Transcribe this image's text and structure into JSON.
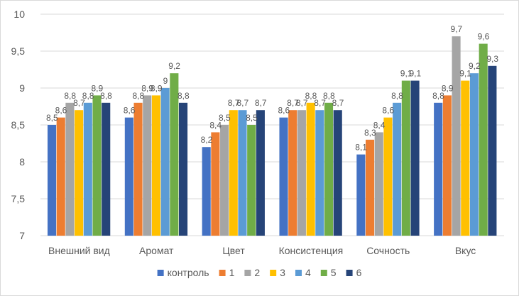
{
  "chart_data": {
    "type": "bar",
    "title": "",
    "xlabel": "",
    "ylabel": "",
    "ylim": [
      7,
      10
    ],
    "yticks": [
      "7",
      "7,5",
      "8",
      "8,5",
      "9",
      "9,5",
      "10"
    ],
    "ytick_values": [
      7,
      7.5,
      8,
      8.5,
      9,
      9.5,
      10
    ],
    "grid": true,
    "legend_position": "bottom",
    "categories": [
      "Внешний вид",
      "Аромат",
      "Цвет",
      "Консистенция",
      "Сочность",
      "Вкус"
    ],
    "series": [
      {
        "name": "контроль",
        "color": "#4472c4",
        "values": [
          8.5,
          8.6,
          8.2,
          8.6,
          8.1,
          8.8
        ],
        "labels": [
          "8,5",
          "8,6",
          "8,2",
          "8,6",
          "8,1",
          "8,8"
        ]
      },
      {
        "name": "1",
        "color": "#ed7d31",
        "values": [
          8.6,
          8.8,
          8.4,
          8.7,
          8.3,
          8.9
        ],
        "labels": [
          "8,6",
          "8,8",
          "8,4",
          "8,7",
          "8,3",
          "8,9"
        ]
      },
      {
        "name": "2",
        "color": "#a5a5a5",
        "values": [
          8.8,
          8.9,
          8.5,
          8.7,
          8.4,
          9.7
        ],
        "labels": [
          "8,8",
          "8,9",
          "8,5",
          "8,7",
          "8,4",
          "9,7"
        ]
      },
      {
        "name": "3",
        "color": "#ffc000",
        "values": [
          8.7,
          8.9,
          8.7,
          8.8,
          8.6,
          9.1
        ],
        "labels": [
          "8,7",
          "8,9",
          "8,7",
          "8,8",
          "8,6",
          "9,1"
        ]
      },
      {
        "name": "4",
        "color": "#5b9bd5",
        "values": [
          8.8,
          9.0,
          8.7,
          8.7,
          8.8,
          9.2
        ],
        "labels": [
          "8,8",
          "9",
          "8,7",
          "8,7",
          "8,8",
          "9,2"
        ]
      },
      {
        "name": "5",
        "color": "#70ad47",
        "values": [
          8.9,
          9.2,
          8.5,
          8.8,
          9.1,
          9.6
        ],
        "labels": [
          "8,9",
          "9,2",
          "8,5",
          "8,8",
          "9,1",
          "9,6"
        ]
      },
      {
        "name": "6",
        "color": "#264478",
        "values": [
          8.8,
          8.8,
          8.7,
          8.7,
          9.1,
          9.3
        ],
        "labels": [
          "8,8",
          "8,8",
          "8,7",
          "8,7",
          "9,1",
          "9,3"
        ]
      }
    ]
  }
}
